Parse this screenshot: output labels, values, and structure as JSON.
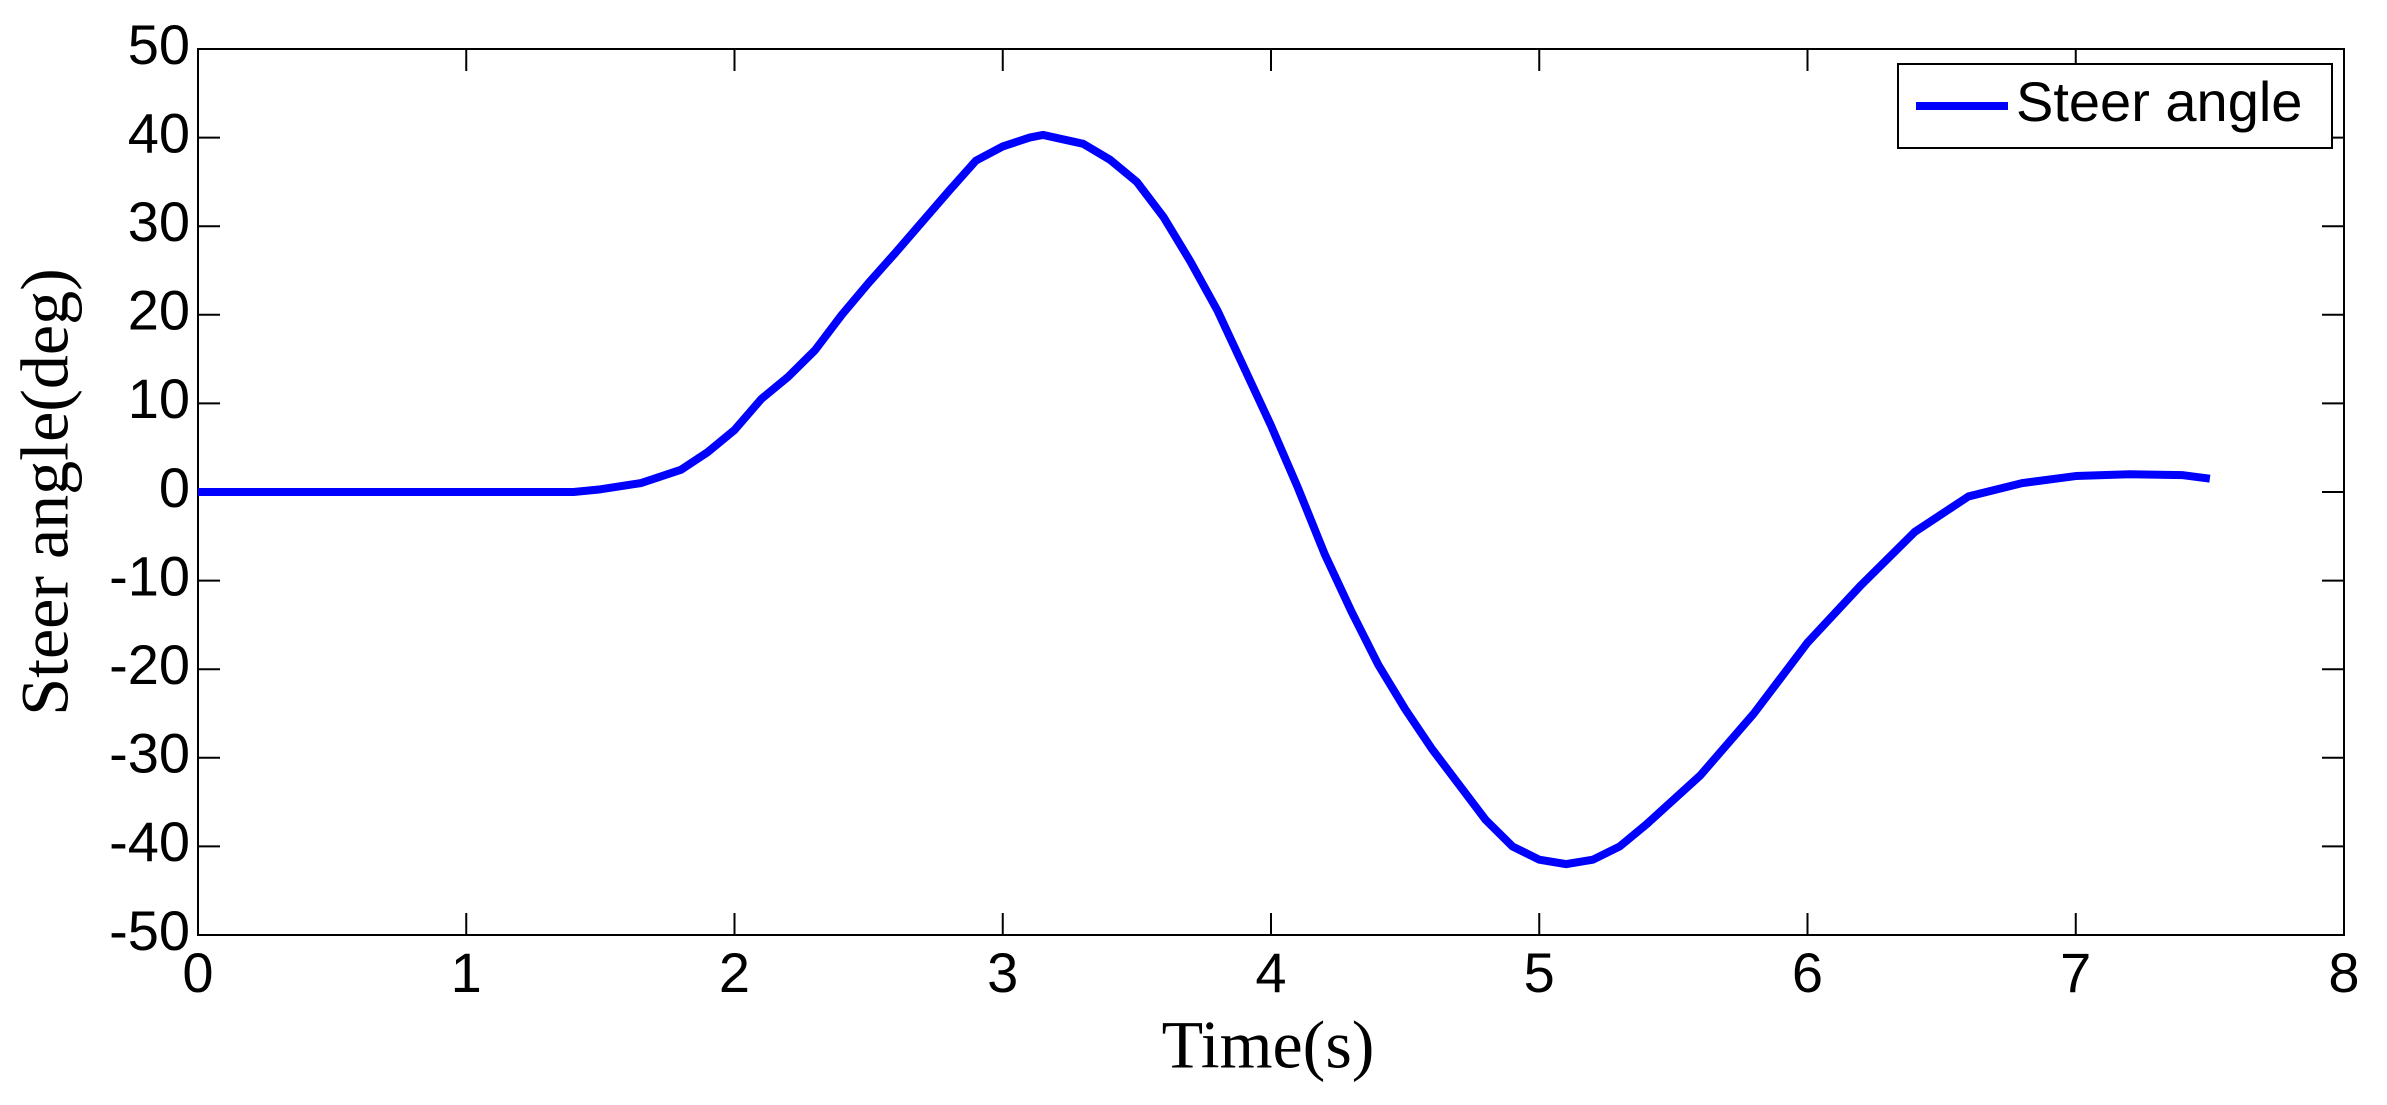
{
  "chart_data": {
    "type": "line",
    "x_label": "Time(s)",
    "y_label": "Steer angle(deg)",
    "x": [
      0,
      0.5,
      1,
      1.4,
      1.5,
      1.65,
      1.8,
      1.9,
      2.0,
      2.1,
      2.2,
      2.3,
      2.4,
      2.5,
      2.6,
      2.7,
      2.8,
      2.9,
      3.0,
      3.1,
      3.15,
      3.3,
      3.4,
      3.5,
      3.6,
      3.7,
      3.8,
      3.9,
      4.0,
      4.1,
      4.2,
      4.3,
      4.4,
      4.5,
      4.6,
      4.7,
      4.8,
      4.9,
      5.0,
      5.1,
      5.2,
      5.3,
      5.4,
      5.6,
      5.8,
      6.0,
      6.2,
      6.4,
      6.6,
      6.8,
      7.0,
      7.2,
      7.4,
      7.5
    ],
    "series": [
      {
        "name": "Steer angle",
        "color": "#0000ff",
        "values": [
          0,
          0,
          0,
          0,
          0.3,
          1,
          2.5,
          4.5,
          7,
          10.5,
          13,
          16,
          20,
          23.6,
          27,
          30.5,
          34,
          37.4,
          39,
          40,
          40.3,
          39.3,
          37.5,
          35,
          31,
          26,
          20.5,
          14,
          7.5,
          0.5,
          -7,
          -13.5,
          -19.5,
          -24.5,
          -29,
          -33,
          -37,
          -40,
          -41.5,
          -42,
          -41.5,
          -40,
          -37.5,
          -32,
          -25,
          -17,
          -10.5,
          -4.5,
          -0.5,
          1,
          1.8,
          2,
          1.9,
          1.5
        ]
      }
    ],
    "xlim": [
      0,
      8
    ],
    "xticks": [
      0,
      1,
      2,
      3,
      4,
      5,
      6,
      7,
      8
    ],
    "ylim": [
      -50,
      50
    ],
    "yticks": [
      -50,
      -40,
      -30,
      -20,
      -10,
      0,
      10,
      20,
      30,
      40,
      50
    ],
    "legend": "upper right",
    "grid": false
  }
}
